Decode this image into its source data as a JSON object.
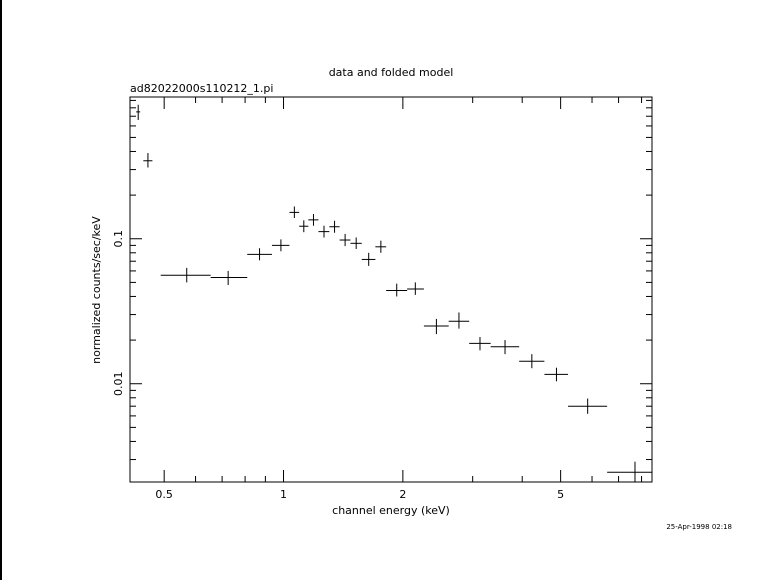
{
  "chart_data": {
    "type": "scatter",
    "title": "data and folded model",
    "subtitle": "ad82022000s110212_1.pi",
    "xlabel": "channel energy (keV)",
    "ylabel": "normalized counts/sec/keV",
    "xscale": "log",
    "yscale": "log",
    "xlim": [
      0.41,
      8.5
    ],
    "ylim": [
      0.0021,
      0.95
    ],
    "x_ticks": [
      {
        "value": 0.5,
        "label": "0.5"
      },
      {
        "value": 1,
        "label": "1"
      },
      {
        "value": 2,
        "label": "2"
      },
      {
        "value": 5,
        "label": "5"
      }
    ],
    "y_ticks": [
      {
        "value": 0.1,
        "label": "0.1"
      },
      {
        "value": 0.01,
        "label": "0.01"
      }
    ],
    "series": [
      {
        "style": "crosses",
        "points": [
          {
            "x": 0.43,
            "xlo": 0.425,
            "xhi": 0.435,
            "y": 0.75,
            "ylo": 0.66,
            "yhi": 0.84
          },
          {
            "x": 0.455,
            "xlo": 0.443,
            "xhi": 0.467,
            "y": 0.345,
            "ylo": 0.31,
            "yhi": 0.39
          },
          {
            "x": 0.57,
            "xlo": 0.49,
            "xhi": 0.655,
            "y": 0.056,
            "ylo": 0.05,
            "yhi": 0.063
          },
          {
            "x": 0.725,
            "xlo": 0.655,
            "xhi": 0.81,
            "y": 0.054,
            "ylo": 0.048,
            "yhi": 0.06
          },
          {
            "x": 0.87,
            "xlo": 0.81,
            "xhi": 0.935,
            "y": 0.078,
            "ylo": 0.071,
            "yhi": 0.086
          },
          {
            "x": 0.985,
            "xlo": 0.935,
            "xhi": 1.035,
            "y": 0.09,
            "ylo": 0.082,
            "yhi": 0.099
          },
          {
            "x": 1.065,
            "xlo": 1.035,
            "xhi": 1.095,
            "y": 0.152,
            "ylo": 0.139,
            "yhi": 0.167
          },
          {
            "x": 1.125,
            "xlo": 1.095,
            "xhi": 1.155,
            "y": 0.122,
            "ylo": 0.111,
            "yhi": 0.134
          },
          {
            "x": 1.19,
            "xlo": 1.155,
            "xhi": 1.225,
            "y": 0.135,
            "ylo": 0.123,
            "yhi": 0.148
          },
          {
            "x": 1.265,
            "xlo": 1.225,
            "xhi": 1.305,
            "y": 0.112,
            "ylo": 0.102,
            "yhi": 0.123
          },
          {
            "x": 1.345,
            "xlo": 1.305,
            "xhi": 1.385,
            "y": 0.121,
            "ylo": 0.11,
            "yhi": 0.133
          },
          {
            "x": 1.43,
            "xlo": 1.385,
            "xhi": 1.475,
            "y": 0.098,
            "ylo": 0.089,
            "yhi": 0.108
          },
          {
            "x": 1.525,
            "xlo": 1.475,
            "xhi": 1.575,
            "y": 0.093,
            "ylo": 0.085,
            "yhi": 0.102
          },
          {
            "x": 1.64,
            "xlo": 1.575,
            "xhi": 1.705,
            "y": 0.072,
            "ylo": 0.065,
            "yhi": 0.08
          },
          {
            "x": 1.76,
            "xlo": 1.705,
            "xhi": 1.815,
            "y": 0.088,
            "ylo": 0.08,
            "yhi": 0.097
          },
          {
            "x": 1.93,
            "xlo": 1.815,
            "xhi": 2.05,
            "y": 0.044,
            "ylo": 0.04,
            "yhi": 0.049
          },
          {
            "x": 2.15,
            "xlo": 2.05,
            "xhi": 2.26,
            "y": 0.045,
            "ylo": 0.041,
            "yhi": 0.05
          },
          {
            "x": 2.43,
            "xlo": 2.26,
            "xhi": 2.61,
            "y": 0.025,
            "ylo": 0.022,
            "yhi": 0.028
          },
          {
            "x": 2.77,
            "xlo": 2.61,
            "xhi": 2.94,
            "y": 0.027,
            "ylo": 0.024,
            "yhi": 0.031
          },
          {
            "x": 3.13,
            "xlo": 2.94,
            "xhi": 3.33,
            "y": 0.019,
            "ylo": 0.017,
            "yhi": 0.021
          },
          {
            "x": 3.62,
            "xlo": 3.33,
            "xhi": 3.93,
            "y": 0.018,
            "ylo": 0.016,
            "yhi": 0.02
          },
          {
            "x": 4.23,
            "xlo": 3.93,
            "xhi": 4.55,
            "y": 0.0143,
            "ylo": 0.0128,
            "yhi": 0.016
          },
          {
            "x": 4.88,
            "xlo": 4.55,
            "xhi": 5.22,
            "y": 0.0116,
            "ylo": 0.0104,
            "yhi": 0.0129
          },
          {
            "x": 5.85,
            "xlo": 5.22,
            "xhi": 6.55,
            "y": 0.007,
            "ylo": 0.0062,
            "yhi": 0.0079
          },
          {
            "x": 7.7,
            "xlo": 6.55,
            "xhi": 8.5,
            "y": 0.00245,
            "ylo": 0.0021,
            "yhi": 0.0029
          }
        ]
      }
    ],
    "grid": false,
    "legend": "none"
  },
  "footer": {
    "timestamp": "25-Apr-1998 02:18"
  }
}
